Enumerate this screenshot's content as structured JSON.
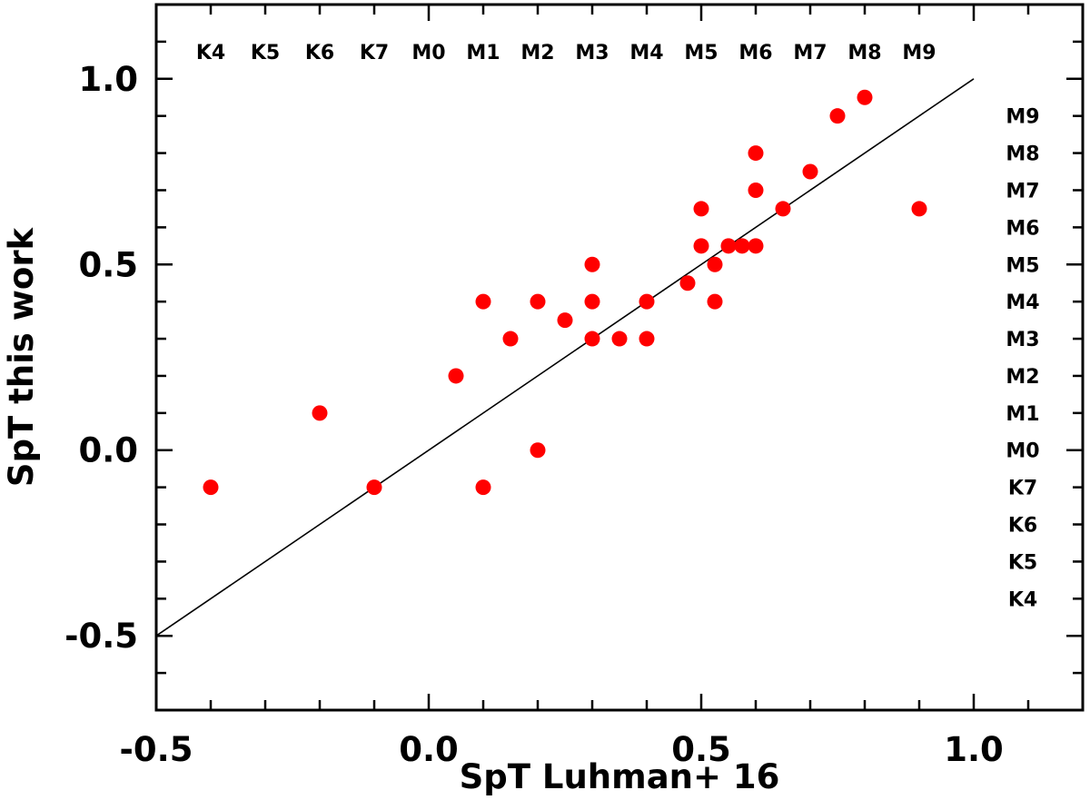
{
  "chart_data": {
    "type": "scatter",
    "title": "",
    "xlabel": "SpT Luhman+ 16",
    "ylabel": "SpT this work",
    "xlim": [
      -0.5,
      1.2
    ],
    "ylim": [
      -0.7,
      1.2
    ],
    "x_ticks": [
      {
        "value": -0.5,
        "label": "-0.5"
      },
      {
        "value": 0.0,
        "label": "0.0"
      },
      {
        "value": 0.5,
        "label": "0.5"
      },
      {
        "value": 1.0,
        "label": "1.0"
      }
    ],
    "y_ticks": [
      {
        "value": -0.5,
        "label": "-0.5"
      },
      {
        "value": 0.0,
        "label": "0.0"
      },
      {
        "value": 0.5,
        "label": "0.5"
      },
      {
        "value": 1.0,
        "label": "1.0"
      }
    ],
    "top_spt_labels": [
      {
        "value": -0.4,
        "label": "K4"
      },
      {
        "value": -0.3,
        "label": "K5"
      },
      {
        "value": -0.2,
        "label": "K6"
      },
      {
        "value": -0.1,
        "label": "K7"
      },
      {
        "value": 0.0,
        "label": "M0"
      },
      {
        "value": 0.1,
        "label": "M1"
      },
      {
        "value": 0.2,
        "label": "M2"
      },
      {
        "value": 0.3,
        "label": "M3"
      },
      {
        "value": 0.4,
        "label": "M4"
      },
      {
        "value": 0.5,
        "label": "M5"
      },
      {
        "value": 0.6,
        "label": "M6"
      },
      {
        "value": 0.7,
        "label": "M7"
      },
      {
        "value": 0.8,
        "label": "M8"
      },
      {
        "value": 0.9,
        "label": "M9"
      }
    ],
    "right_spt_labels": [
      {
        "value": 0.9,
        "label": "M9"
      },
      {
        "value": 0.8,
        "label": "M8"
      },
      {
        "value": 0.7,
        "label": "M7"
      },
      {
        "value": 0.6,
        "label": "M6"
      },
      {
        "value": 0.5,
        "label": "M5"
      },
      {
        "value": 0.4,
        "label": "M4"
      },
      {
        "value": 0.3,
        "label": "M3"
      },
      {
        "value": 0.2,
        "label": "M2"
      },
      {
        "value": 0.1,
        "label": "M1"
      },
      {
        "value": 0.0,
        "label": "M0"
      },
      {
        "value": -0.1,
        "label": "K7"
      },
      {
        "value": -0.2,
        "label": "K6"
      },
      {
        "value": -0.3,
        "label": "K5"
      },
      {
        "value": -0.4,
        "label": "K4"
      }
    ],
    "reference_line": {
      "x": [
        -0.5,
        1.0
      ],
      "y": [
        -0.5,
        1.0
      ],
      "color": "#000000"
    },
    "series": [
      {
        "color": "#ff0000",
        "points": [
          {
            "x": -0.4,
            "y": -0.1
          },
          {
            "x": -0.2,
            "y": 0.1
          },
          {
            "x": -0.1,
            "y": -0.1
          },
          {
            "x": 0.05,
            "y": 0.2
          },
          {
            "x": 0.1,
            "y": 0.4
          },
          {
            "x": 0.1,
            "y": -0.1
          },
          {
            "x": 0.15,
            "y": 0.3
          },
          {
            "x": 0.2,
            "y": 0.4
          },
          {
            "x": 0.2,
            "y": 0.0
          },
          {
            "x": 0.25,
            "y": 0.35
          },
          {
            "x": 0.3,
            "y": 0.5
          },
          {
            "x": 0.3,
            "y": 0.4
          },
          {
            "x": 0.3,
            "y": 0.3
          },
          {
            "x": 0.35,
            "y": 0.3
          },
          {
            "x": 0.4,
            "y": 0.4
          },
          {
            "x": 0.4,
            "y": 0.3
          },
          {
            "x": 0.475,
            "y": 0.45
          },
          {
            "x": 0.5,
            "y": 0.65
          },
          {
            "x": 0.5,
            "y": 0.55
          },
          {
            "x": 0.525,
            "y": 0.5
          },
          {
            "x": 0.525,
            "y": 0.4
          },
          {
            "x": 0.55,
            "y": 0.55
          },
          {
            "x": 0.575,
            "y": 0.55
          },
          {
            "x": 0.6,
            "y": 0.8
          },
          {
            "x": 0.6,
            "y": 0.7
          },
          {
            "x": 0.6,
            "y": 0.55
          },
          {
            "x": 0.65,
            "y": 0.65
          },
          {
            "x": 0.7,
            "y": 0.75
          },
          {
            "x": 0.75,
            "y": 0.9
          },
          {
            "x": 0.8,
            "y": 0.95
          },
          {
            "x": 0.9,
            "y": 0.65
          }
        ]
      }
    ],
    "grid": false,
    "legend": "none"
  }
}
